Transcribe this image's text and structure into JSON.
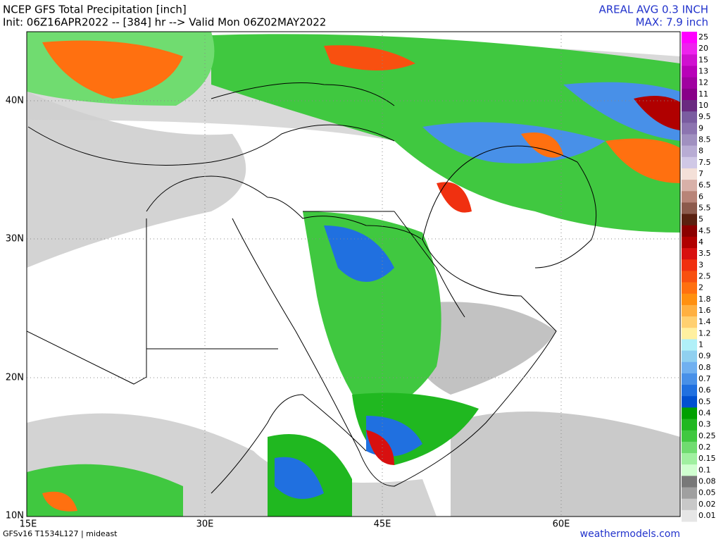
{
  "header": {
    "title": "NCEP GFS Total Precipitation [inch]",
    "subtitle": "Init: 06Z16APR2022 -- [384] hr --> Valid Mon 06Z02MAY2022",
    "areal_avg": "AREAL AVG 0.3 INCH",
    "max": "MAX: 7.9 inch"
  },
  "map": {
    "lat_labels": [
      "40N",
      "30N",
      "20N",
      "10N"
    ],
    "lon_labels": [
      "15E",
      "30E",
      "45E",
      "60E"
    ]
  },
  "colorbar": [
    {
      "label": "25",
      "color": "#ff00ff"
    },
    {
      "label": "20",
      "color": "#ee22ee"
    },
    {
      "label": "15",
      "color": "#d010d0"
    },
    {
      "label": "13",
      "color": "#b800b8"
    },
    {
      "label": "12",
      "color": "#a000a0"
    },
    {
      "label": "11",
      "color": "#880088"
    },
    {
      "label": "10",
      "color": "#6a2a80"
    },
    {
      "label": "9.5",
      "color": "#7a5ca0"
    },
    {
      "label": "9",
      "color": "#8c74b0"
    },
    {
      "label": "8.5",
      "color": "#a090c0"
    },
    {
      "label": "8",
      "color": "#b8acd4"
    },
    {
      "label": "7.5",
      "color": "#d0c8e6"
    },
    {
      "label": "7",
      "color": "#f4e0d8"
    },
    {
      "label": "6.5",
      "color": "#d8b0a8"
    },
    {
      "label": "6",
      "color": "#b88478"
    },
    {
      "label": "5.5",
      "color": "#8c5a4c"
    },
    {
      "label": "5",
      "color": "#5a2010"
    },
    {
      "label": "4.5",
      "color": "#8b0000"
    },
    {
      "label": "4",
      "color": "#b00000"
    },
    {
      "label": "3.5",
      "color": "#d81010"
    },
    {
      "label": "3",
      "color": "#f03010"
    },
    {
      "label": "2.5",
      "color": "#f85010"
    },
    {
      "label": "2",
      "color": "#ff7010"
    },
    {
      "label": "1.8",
      "color": "#ff9010"
    },
    {
      "label": "1.6",
      "color": "#ffb040"
    },
    {
      "label": "1.4",
      "color": "#ffd070"
    },
    {
      "label": "1.2",
      "color": "#fff0a0"
    },
    {
      "label": "1",
      "color": "#b0f0f8"
    },
    {
      "label": "0.9",
      "color": "#90d0f0"
    },
    {
      "label": "0.8",
      "color": "#70b0f0"
    },
    {
      "label": "0.7",
      "color": "#4890e8"
    },
    {
      "label": "0.6",
      "color": "#2070e0"
    },
    {
      "label": "0.5",
      "color": "#0050d0"
    },
    {
      "label": "0.4",
      "color": "#00a000"
    },
    {
      "label": "0.3",
      "color": "#20b820"
    },
    {
      "label": "0.25",
      "color": "#40c840"
    },
    {
      "label": "0.2",
      "color": "#70dc70"
    },
    {
      "label": "0.15",
      "color": "#a0f0a0"
    },
    {
      "label": "0.1",
      "color": "#d0ffd0"
    },
    {
      "label": "0.08",
      "color": "#787878"
    },
    {
      "label": "0.05",
      "color": "#a0a0a0"
    },
    {
      "label": "0.02",
      "color": "#c8c8c8"
    },
    {
      "label": "0.01",
      "color": "#e6e6e6"
    }
  ],
  "footer": {
    "model": "GFSv16 T1534L127 | mideast",
    "site": "weathermodels.com"
  }
}
